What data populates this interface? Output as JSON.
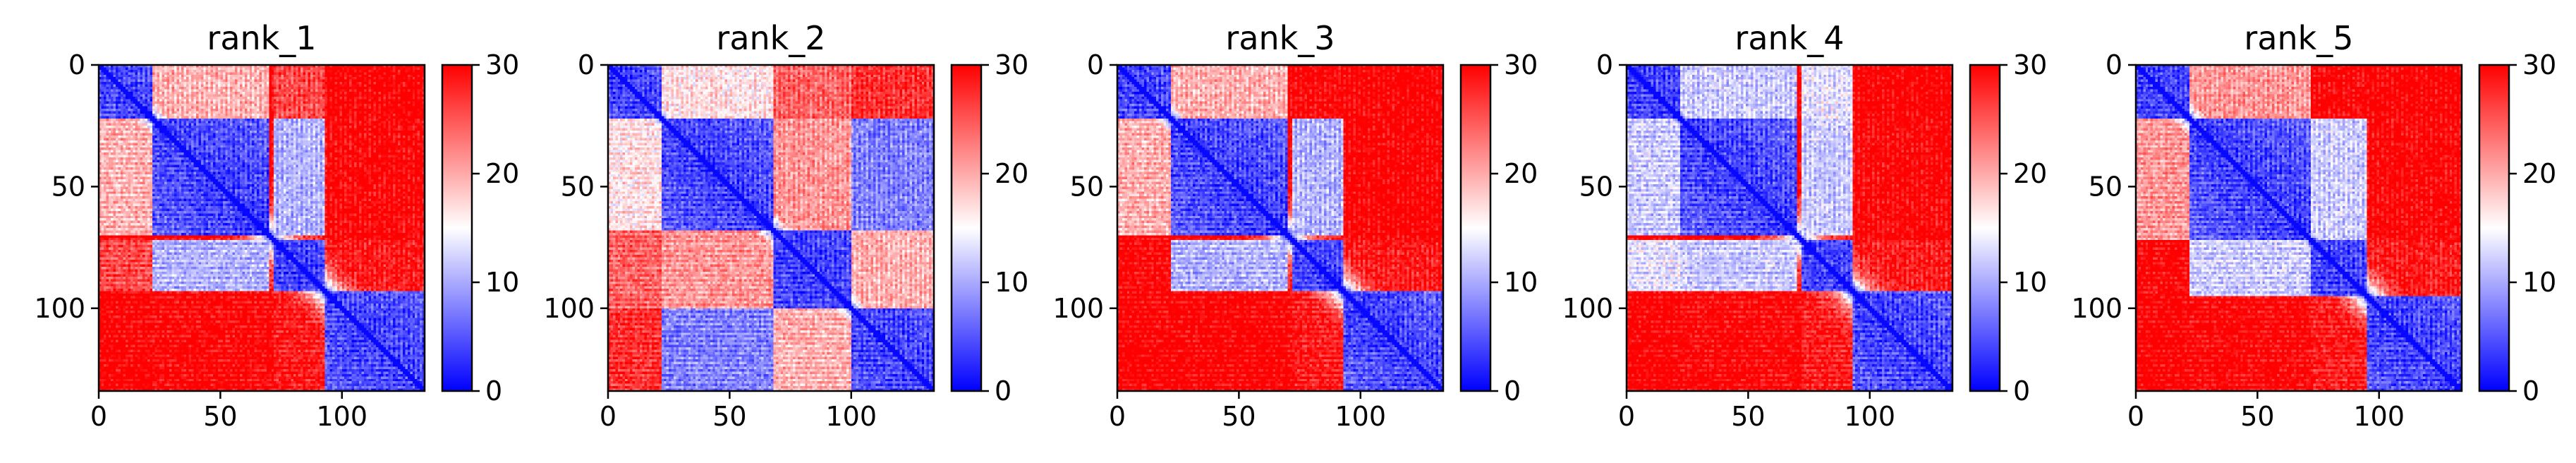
{
  "chart_data": {
    "type": "heatmap",
    "colormap": {
      "name": "bwr",
      "low": "#0000ff",
      "mid": "#ffffff",
      "high": "#ff0000"
    },
    "shared": {
      "size": 134,
      "xlim": [
        0,
        134
      ],
      "ylim": [
        134,
        0
      ],
      "xticks": [
        0,
        50,
        100
      ],
      "yticks": [
        0,
        50,
        100
      ],
      "vmin": 0,
      "vmax": 30,
      "colorbar_ticks": [
        0,
        10,
        20,
        30
      ]
    },
    "panels": [
      {
        "title": "rank_1",
        "domains": [
          [
            0,
            22,
            0
          ],
          [
            22,
            70,
            0
          ],
          [
            72,
            93,
            0
          ],
          [
            93,
            134,
            0
          ]
        ],
        "couplings": [
          [
            1,
            2,
            0.25,
            0.15
          ],
          [
            0,
            1,
            0.55,
            0.35
          ],
          [
            0,
            2,
            0.75,
            0.6
          ],
          [
            2,
            3,
            0.85,
            0.75
          ],
          [
            1,
            3,
            0.9,
            0.85
          ],
          [
            0,
            3,
            0.95,
            0.9
          ]
        ],
        "ellipse": [
          82,
          40,
          16,
          5,
          0.55,
          13
        ]
      },
      {
        "title": "rank_2",
        "domains": [
          [
            0,
            22,
            0
          ],
          [
            22,
            68,
            0
          ],
          [
            68,
            100,
            0
          ],
          [
            100,
            134,
            0
          ]
        ],
        "couplings": [
          [
            1,
            3,
            0.15,
            0.05
          ],
          [
            0,
            1,
            0.45,
            0.3
          ],
          [
            1,
            2,
            0.6,
            0.45
          ],
          [
            2,
            3,
            0.55,
            0.4
          ],
          [
            0,
            2,
            0.7,
            0.55
          ],
          [
            0,
            3,
            0.8,
            0.7
          ]
        ],
        "ellipse": null
      },
      {
        "title": "rank_3",
        "domains": [
          [
            0,
            22,
            0
          ],
          [
            22,
            70,
            0
          ],
          [
            72,
            93,
            0
          ],
          [
            93,
            134,
            0
          ]
        ],
        "couplings": [
          [
            1,
            2,
            0.25,
            0.15
          ],
          [
            0,
            1,
            0.55,
            0.35
          ],
          [
            0,
            2,
            0.9,
            0.8
          ],
          [
            2,
            3,
            0.85,
            0.75
          ],
          [
            1,
            3,
            0.95,
            0.9
          ],
          [
            0,
            3,
            0.95,
            0.95
          ]
        ],
        "ellipse": [
          82,
          40,
          16,
          5,
          0.55,
          13
        ]
      },
      {
        "title": "rank_4",
        "domains": [
          [
            0,
            22,
            0
          ],
          [
            22,
            70,
            0
          ],
          [
            72,
            93,
            0
          ],
          [
            93,
            134,
            0
          ]
        ],
        "couplings": [
          [
            0,
            1,
            0.3,
            0.1
          ],
          [
            1,
            2,
            0.3,
            0.2
          ],
          [
            0,
            2,
            0.35,
            0.2
          ],
          [
            2,
            3,
            0.85,
            0.75
          ],
          [
            1,
            3,
            0.9,
            0.85
          ],
          [
            0,
            3,
            0.95,
            0.9
          ]
        ],
        "ellipse": [
          82,
          40,
          16,
          5,
          0.55,
          13
        ]
      },
      {
        "title": "rank_5",
        "domains": [
          [
            0,
            22,
            0
          ],
          [
            22,
            72,
            0
          ],
          [
            72,
            95,
            0
          ],
          [
            95,
            134,
            0
          ]
        ],
        "couplings": [
          [
            0,
            1,
            0.6,
            0.45
          ],
          [
            1,
            2,
            0.3,
            0.2
          ],
          [
            0,
            2,
            0.9,
            0.8
          ],
          [
            2,
            3,
            0.85,
            0.75
          ],
          [
            1,
            3,
            0.9,
            0.85
          ],
          [
            0,
            3,
            0.95,
            0.9
          ]
        ],
        "ellipse": null
      }
    ]
  }
}
